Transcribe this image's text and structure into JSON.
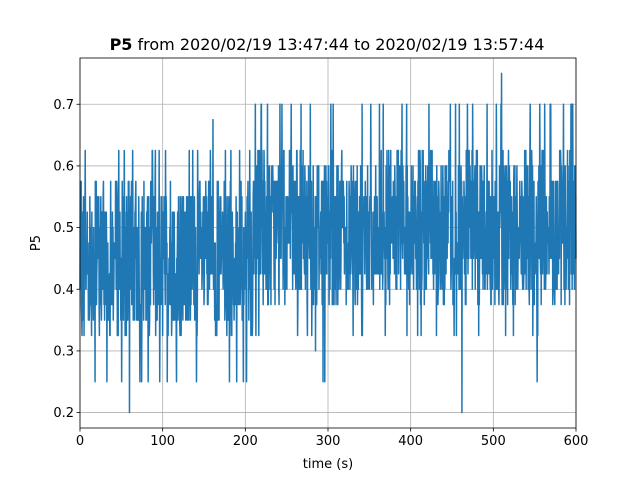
{
  "chart_data": {
    "type": "line",
    "title_bold": "P5",
    "title_rest": " from 2020/02/19 13:47:44 to 2020/02/19 13:57:44",
    "xlabel": "time (s)",
    "ylabel": "P5",
    "xlim": [
      0,
      600
    ],
    "ylim": [
      0.175,
      0.775
    ],
    "xticks": [
      0,
      100,
      200,
      300,
      400,
      500,
      600
    ],
    "yticks": [
      0.2,
      0.3,
      0.4,
      0.5,
      0.6,
      0.7
    ],
    "grid": true,
    "series": [
      {
        "color": "#1f77b4",
        "segments": [
          {
            "x0": 0,
            "x1": 80,
            "low": 0.325,
            "high": 0.575,
            "low_outliers": [
              0.25,
              0.25
            ],
            "high_outliers": [
              0.625,
              0.625
            ]
          },
          {
            "x0": 80,
            "x1": 210,
            "low": 0.325,
            "high": 0.575,
            "low_outliers": [
              0.25,
              0.25
            ],
            "high_outliers": [
              0.625,
              0.625
            ]
          },
          {
            "x0": 210,
            "x1": 600,
            "low": 0.375,
            "high": 0.625,
            "low_outliers": [
              0.325,
              0.325
            ],
            "high_outliers": [
              0.7,
              0.7
            ]
          }
        ],
        "spikes": [
          {
            "x": 60,
            "y": 0.2
          },
          {
            "x": 161,
            "y": 0.675
          },
          {
            "x": 462,
            "y": 0.2
          },
          {
            "x": 510,
            "y": 0.75
          },
          {
            "x": 285,
            "y": 0.3
          },
          {
            "x": 294,
            "y": 0.25
          },
          {
            "x": 296,
            "y": 0.25
          },
          {
            "x": 553,
            "y": 0.25
          }
        ]
      }
    ]
  }
}
